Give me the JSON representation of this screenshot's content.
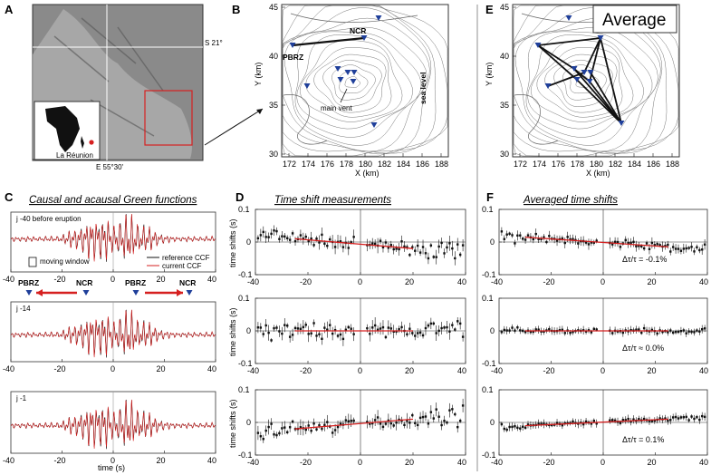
{
  "panel_labels": {
    "A": "A",
    "B": "B",
    "C": "C",
    "D": "D",
    "E": "E",
    "F": "F"
  },
  "panelA": {
    "lat_label": "S 21°",
    "lon_label": "E 55°30'",
    "island_label": "La Réunion"
  },
  "panelB": {
    "label_pbrz": "PBRZ",
    "label_ncr": "NCR",
    "label_vent": "main vent",
    "label_sea": "sea level",
    "xlabel": "X (km)",
    "ylabel": "Y (km)",
    "xticks": [
      "172",
      "174",
      "176",
      "178",
      "180",
      "182",
      "184",
      "186",
      "188"
    ],
    "yticks": [
      "45",
      "40",
      "35",
      "30"
    ]
  },
  "panelE": {
    "title": "Average",
    "xlabel": "X (km)",
    "ylabel": "Y (km)",
    "xticks": [
      "172",
      "174",
      "176",
      "178",
      "180",
      "182",
      "184",
      "186",
      "188"
    ],
    "yticks": [
      "45",
      "40",
      "35",
      "30"
    ]
  },
  "panelC": {
    "title": "Causal and acausal Green functions",
    "rows": [
      {
        "label": "j -40 before eruption"
      },
      {
        "label": "j -14"
      },
      {
        "label": "j -1"
      }
    ],
    "legend_ref": "reference CCF",
    "legend_cur": "current CCF",
    "moving_window": "moving window",
    "pbrz": "PBRZ",
    "ncr": "NCR",
    "xlabel": "time (s)",
    "xticks": [
      "-40",
      "-20",
      "0",
      "20",
      "40"
    ]
  },
  "panelD": {
    "title": "Time shift measurements",
    "ylabel": "time shifts (s)",
    "xticks": [
      "-40",
      "-20",
      "0",
      "20",
      "40"
    ],
    "yticks": [
      "0.1",
      "0",
      "-0.1"
    ]
  },
  "panelF": {
    "title": "Averaged time shifts",
    "xticks": [
      "-40",
      "-20",
      "0",
      "20",
      "40"
    ],
    "yticks": [
      "0.1",
      "0",
      "-0.1"
    ],
    "annotations": [
      "Δτ/τ = -0.1%",
      "Δτ/τ ≈ 0.0%",
      "Δτ/τ = 0.1%"
    ]
  },
  "colors": {
    "reference": "#111111",
    "current": "#d62020",
    "arrow": "#d62020",
    "station": "#1f3f9a",
    "fit": "#d62020"
  },
  "chart_data": [
    {
      "type": "scatter",
      "panel": "D",
      "row": 1,
      "xlabel": "",
      "ylabel": "time shifts (s)",
      "xlim": [
        -40,
        40
      ],
      "ylim": [
        -0.1,
        0.1
      ],
      "trend": {
        "x": [
          -25,
          20
        ],
        "y": [
          0.01,
          -0.02
        ]
      }
    },
    {
      "type": "scatter",
      "panel": "D",
      "row": 2,
      "xlabel": "",
      "ylabel": "time shifts (s)",
      "xlim": [
        -40,
        40
      ],
      "ylim": [
        -0.1,
        0.1
      ],
      "trend": {
        "x": [
          -25,
          20
        ],
        "y": [
          0.0,
          0.0
        ]
      }
    },
    {
      "type": "scatter",
      "panel": "D",
      "row": 3,
      "xlabel": "",
      "ylabel": "time shifts (s)",
      "xlim": [
        -40,
        40
      ],
      "ylim": [
        -0.1,
        0.1
      ],
      "trend": {
        "x": [
          -25,
          20
        ],
        "y": [
          -0.02,
          0.01
        ]
      }
    },
    {
      "type": "scatter",
      "panel": "F",
      "row": 1,
      "xlim": [
        -40,
        40
      ],
      "ylim": [
        -0.1,
        0.1
      ],
      "dt_over_t_percent": -0.1,
      "trend": {
        "x": [
          -30,
          25
        ],
        "y": [
          0.015,
          -0.015
        ]
      }
    },
    {
      "type": "scatter",
      "panel": "F",
      "row": 2,
      "xlim": [
        -40,
        40
      ],
      "ylim": [
        -0.1,
        0.1
      ],
      "dt_over_t_percent": 0.0,
      "trend": {
        "x": [
          -30,
          25
        ],
        "y": [
          0.0,
          0.0
        ]
      }
    },
    {
      "type": "scatter",
      "panel": "F",
      "row": 3,
      "xlim": [
        -40,
        40
      ],
      "ylim": [
        -0.1,
        0.1
      ],
      "dt_over_t_percent": 0.1,
      "trend": {
        "x": [
          -30,
          25
        ],
        "y": [
          -0.01,
          0.01
        ]
      }
    }
  ]
}
